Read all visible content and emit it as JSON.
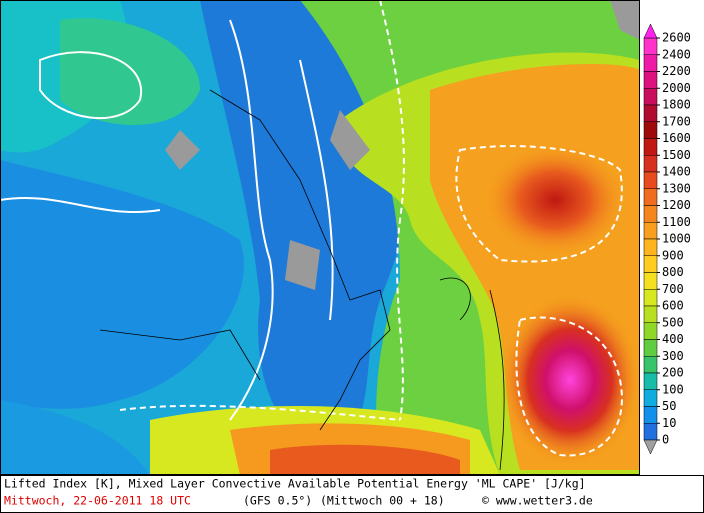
{
  "colorbar": {
    "ticks": [
      2600,
      2400,
      2200,
      2000,
      1800,
      1700,
      1600,
      1500,
      1400,
      1300,
      1200,
      1100,
      1000,
      900,
      800,
      700,
      600,
      500,
      400,
      300,
      200,
      100,
      50,
      10,
      0
    ],
    "colors": [
      "#ff33cc",
      "#ee1ba8",
      "#dd1180",
      "#c80e5c",
      "#b00c30",
      "#9c0a0a",
      "#c01812",
      "#d83020",
      "#e84c1e",
      "#f06c1e",
      "#f5861e",
      "#fa9e20",
      "#ffb420",
      "#ffcc20",
      "#f4e020",
      "#d8e820",
      "#b8e020",
      "#90d828",
      "#60cc40",
      "#38c468",
      "#18bca8",
      "#10ace0",
      "#1290ea",
      "#2070e0"
    ],
    "over_color": "#ff22ee",
    "under_color": "#a0a0a0"
  },
  "footer": {
    "title": "Lifted Index [K], Mixed Layer Convective Available Potential Energy 'ML CAPE' [J/kg]",
    "date": "Mittwoch, 22-06-2011  18 UTC",
    "model": "(GFS 0.5°)",
    "run": "(Mittwoch 00 + 18)",
    "credit": "© www.wetter3.de"
  }
}
